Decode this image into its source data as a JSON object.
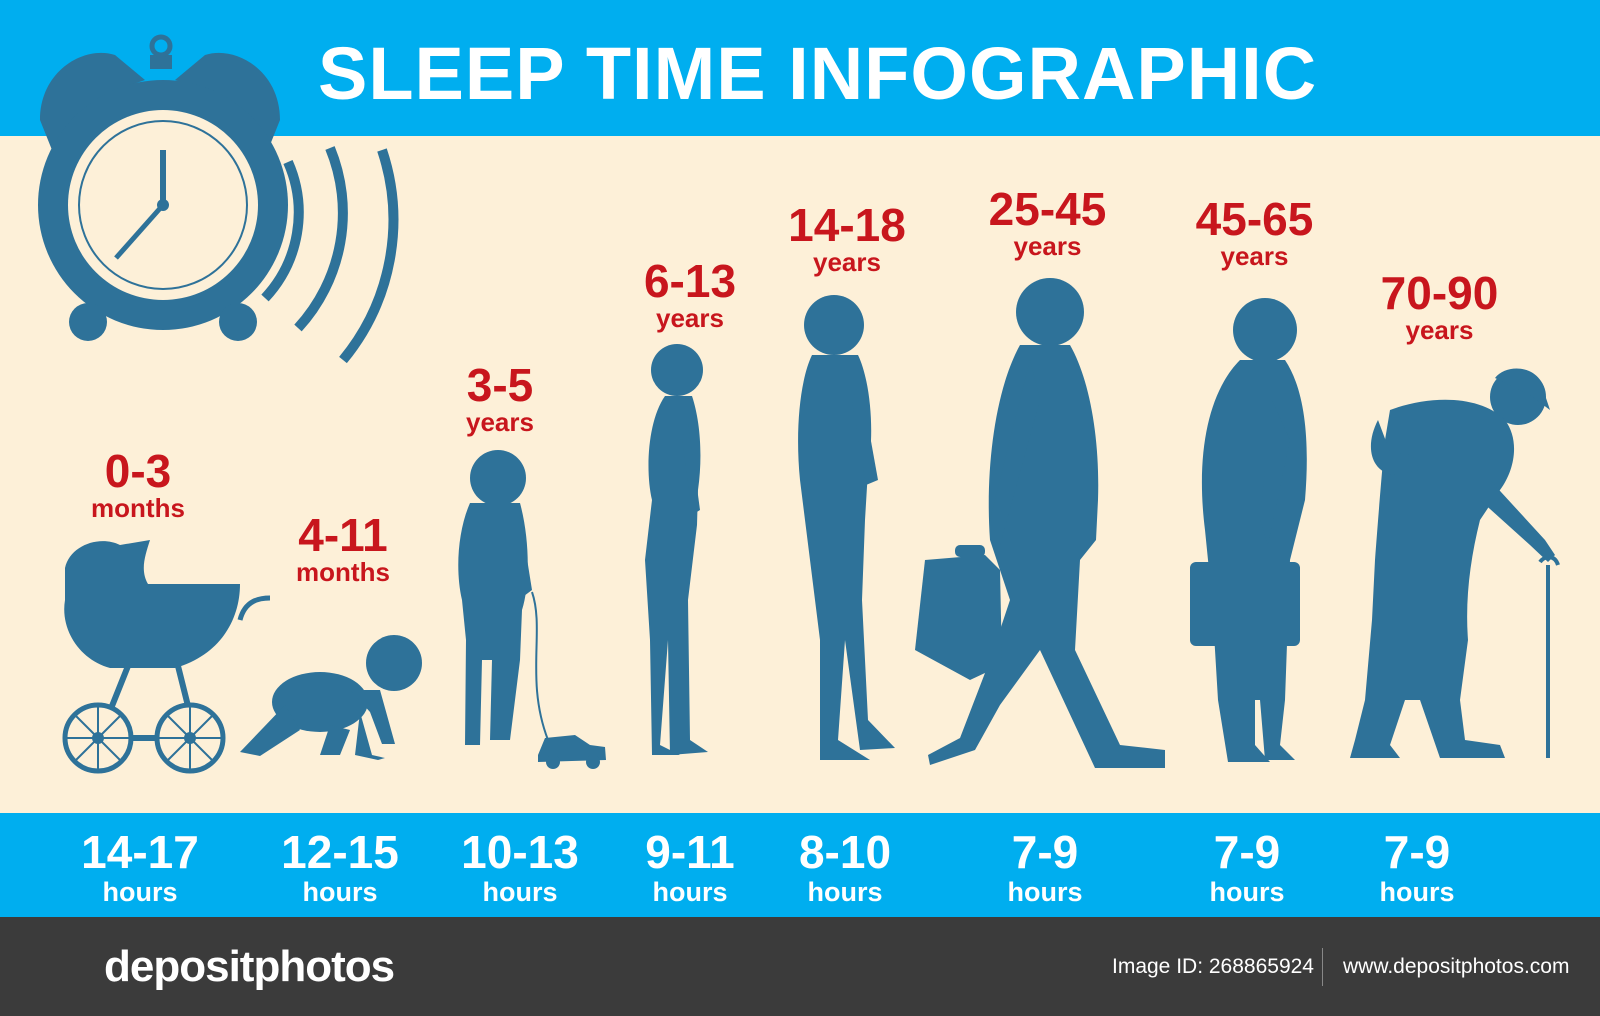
{
  "title": "SLEEP TIME INFOGRAPHIC",
  "colors": {
    "header_blue": "#00aeef",
    "silhouette_blue": "#2e7299",
    "age_red": "#c8161d",
    "background": "#fdf0d8",
    "footer_dark": "#3b3b3b"
  },
  "stages": [
    {
      "age": "0-3",
      "unit": "months",
      "hours": "14-17",
      "hours_unit": "hours",
      "figure": "baby-carriage-icon"
    },
    {
      "age": "4-11",
      "unit": "months",
      "hours": "12-15",
      "hours_unit": "hours",
      "figure": "crawling-baby-icon"
    },
    {
      "age": "3-5",
      "unit": "years",
      "hours": "10-13",
      "hours_unit": "hours",
      "figure": "toddler-with-toy-car-icon"
    },
    {
      "age": "6-13",
      "unit": "years",
      "hours": "9-11",
      "hours_unit": "hours",
      "figure": "child-silhouette-icon"
    },
    {
      "age": "14-18",
      "unit": "years",
      "hours": "8-10",
      "hours_unit": "hours",
      "figure": "teen-silhouette-icon"
    },
    {
      "age": "25-45",
      "unit": "years",
      "hours": "7-9",
      "hours_unit": "hours",
      "figure": "walking-man-briefcase-icon"
    },
    {
      "age": "45-65",
      "unit": "years",
      "hours": "7-9",
      "hours_unit": "hours",
      "figure": "standing-man-briefcase-icon"
    },
    {
      "age": "70-90",
      "unit": "years",
      "hours": "7-9",
      "hours_unit": "hours",
      "figure": "elderly-man-cane-icon"
    }
  ],
  "footer": {
    "brand": "depositphotos",
    "image_id": "Image ID: 268865924",
    "url": "www.depositphotos.com"
  }
}
